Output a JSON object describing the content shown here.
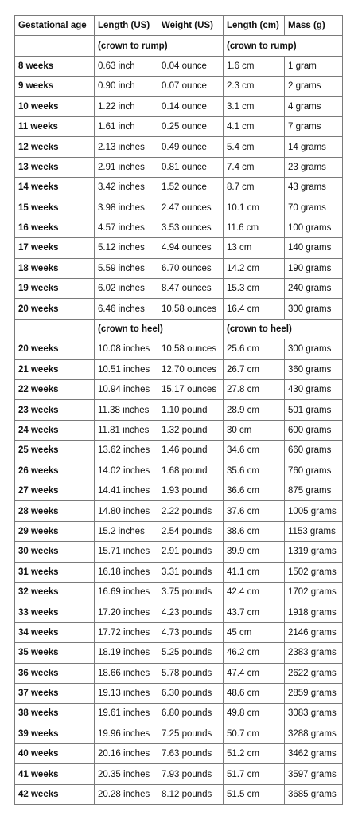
{
  "headers": [
    "Gestational age",
    "Length (US)",
    "Weight (US)",
    "Length (cm)",
    "Mass (g)"
  ],
  "section1": {
    "us_label": "(crown to rump)",
    "metric_label": "(crown to rump)"
  },
  "rows1": [
    [
      "8 weeks",
      "0.63 inch",
      "0.04 ounce",
      "1.6 cm",
      "1 gram"
    ],
    [
      "9 weeks",
      "0.90 inch",
      "0.07 ounce",
      "2.3 cm",
      "2 grams"
    ],
    [
      "10 weeks",
      "1.22 inch",
      "0.14 ounce",
      "3.1 cm",
      "4 grams"
    ],
    [
      "11 weeks",
      "1.61 inch",
      "0.25 ounce",
      "4.1 cm",
      "7 grams"
    ],
    [
      "12 weeks",
      "2.13 inches",
      "0.49 ounce",
      "5.4 cm",
      "14 grams"
    ],
    [
      "13 weeks",
      "2.91 inches",
      "0.81 ounce",
      "7.4 cm",
      "23 grams"
    ],
    [
      "14 weeks",
      "3.42 inches",
      "1.52 ounce",
      "8.7 cm",
      "43 grams"
    ],
    [
      "15 weeks",
      "3.98 inches",
      "2.47 ounces",
      "10.1 cm",
      "70 grams"
    ],
    [
      "16 weeks",
      "4.57 inches",
      "3.53 ounces",
      "11.6 cm",
      "100 grams"
    ],
    [
      "17 weeks",
      "5.12 inches",
      "4.94 ounces",
      "13 cm",
      "140 grams"
    ],
    [
      "18 weeks",
      "5.59 inches",
      "6.70 ounces",
      "14.2 cm",
      "190 grams"
    ],
    [
      "19 weeks",
      "6.02 inches",
      "8.47 ounces",
      "15.3 cm",
      "240 grams"
    ],
    [
      "20 weeks",
      "6.46 inches",
      "10.58 ounces",
      "16.4 cm",
      "300 grams"
    ]
  ],
  "section2": {
    "us_label": "(crown to heel)",
    "metric_label": "(crown to heel)"
  },
  "rows2": [
    [
      "20 weeks",
      "10.08 inches",
      "10.58 ounces",
      "25.6 cm",
      "300 grams"
    ],
    [
      "21 weeks",
      "10.51 inches",
      "12.70 ounces",
      "26.7 cm",
      "360 grams"
    ],
    [
      "22 weeks",
      "10.94 inches",
      "15.17 ounces",
      "27.8 cm",
      "430 grams"
    ],
    [
      "23 weeks",
      "11.38 inches",
      "1.10 pound",
      "28.9 cm",
      "501 grams"
    ],
    [
      "24 weeks",
      "11.81 inches",
      "1.32 pound",
      "30 cm",
      "600 grams"
    ],
    [
      "25 weeks",
      "13.62 inches",
      "1.46 pound",
      "34.6 cm",
      "660 grams"
    ],
    [
      "26 weeks",
      "14.02 inches",
      "1.68 pound",
      "35.6 cm",
      "760 grams"
    ],
    [
      "27 weeks",
      "14.41 inches",
      "1.93 pound",
      "36.6 cm",
      "875 grams"
    ],
    [
      "28 weeks",
      "14.80 inches",
      "2.22 pounds",
      "37.6 cm",
      "1005 grams"
    ],
    [
      "29 weeks",
      "15.2 inches",
      "2.54 pounds",
      "38.6 cm",
      "1153 grams"
    ],
    [
      "30 weeks",
      "15.71 inches",
      "2.91 pounds",
      "39.9 cm",
      "1319 grams"
    ],
    [
      "31 weeks",
      "16.18 inches",
      "3.31 pounds",
      "41.1 cm",
      "1502 grams"
    ],
    [
      "32 weeks",
      "16.69 inches",
      "3.75 pounds",
      "42.4 cm",
      "1702 grams"
    ],
    [
      "33 weeks",
      "17.20 inches",
      "4.23 pounds",
      "43.7 cm",
      "1918 grams"
    ],
    [
      "34 weeks",
      "17.72 inches",
      "4.73 pounds",
      "45 cm",
      "2146 grams"
    ],
    [
      "35 weeks",
      "18.19 inches",
      "5.25 pounds",
      "46.2 cm",
      "2383 grams"
    ],
    [
      "36 weeks",
      "18.66 inches",
      "5.78 pounds",
      "47.4 cm",
      "2622 grams"
    ],
    [
      "37 weeks",
      "19.13 inches",
      "6.30 pounds",
      "48.6 cm",
      "2859 grams"
    ],
    [
      "38 weeks",
      "19.61 inches",
      "6.80 pounds",
      "49.8 cm",
      "3083 grams"
    ],
    [
      "39 weeks",
      "19.96 inches",
      "7.25 pounds",
      "50.7 cm",
      "3288 grams"
    ],
    [
      "40 weeks",
      "20.16 inches",
      "7.63 pounds",
      "51.2 cm",
      "3462 grams"
    ],
    [
      "41 weeks",
      "20.35 inches",
      "7.93 pounds",
      "51.7 cm",
      "3597 grams"
    ],
    [
      "42 weeks",
      "20.28 inches",
      "8.12 pounds",
      "51.5 cm",
      "3685 grams"
    ]
  ]
}
